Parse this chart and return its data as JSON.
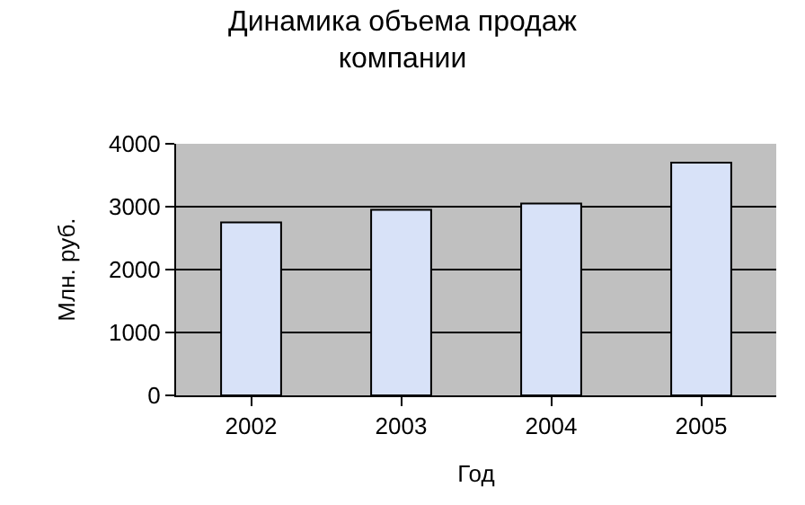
{
  "chart_data": {
    "type": "bar",
    "title": "Динамика объема продаж компании",
    "xlabel": "Год",
    "ylabel": "Млн. руб.",
    "categories": [
      "2002",
      "2003",
      "2004",
      "2005"
    ],
    "series": [
      {
        "color": "#d8e2f8",
        "values": [
          2750,
          2950,
          3050,
          3700
        ]
      }
    ],
    "ylim": [
      0,
      4000
    ],
    "yticks": [
      0,
      1000,
      2000,
      3000,
      4000
    ],
    "grid": "y",
    "legend": false
  }
}
